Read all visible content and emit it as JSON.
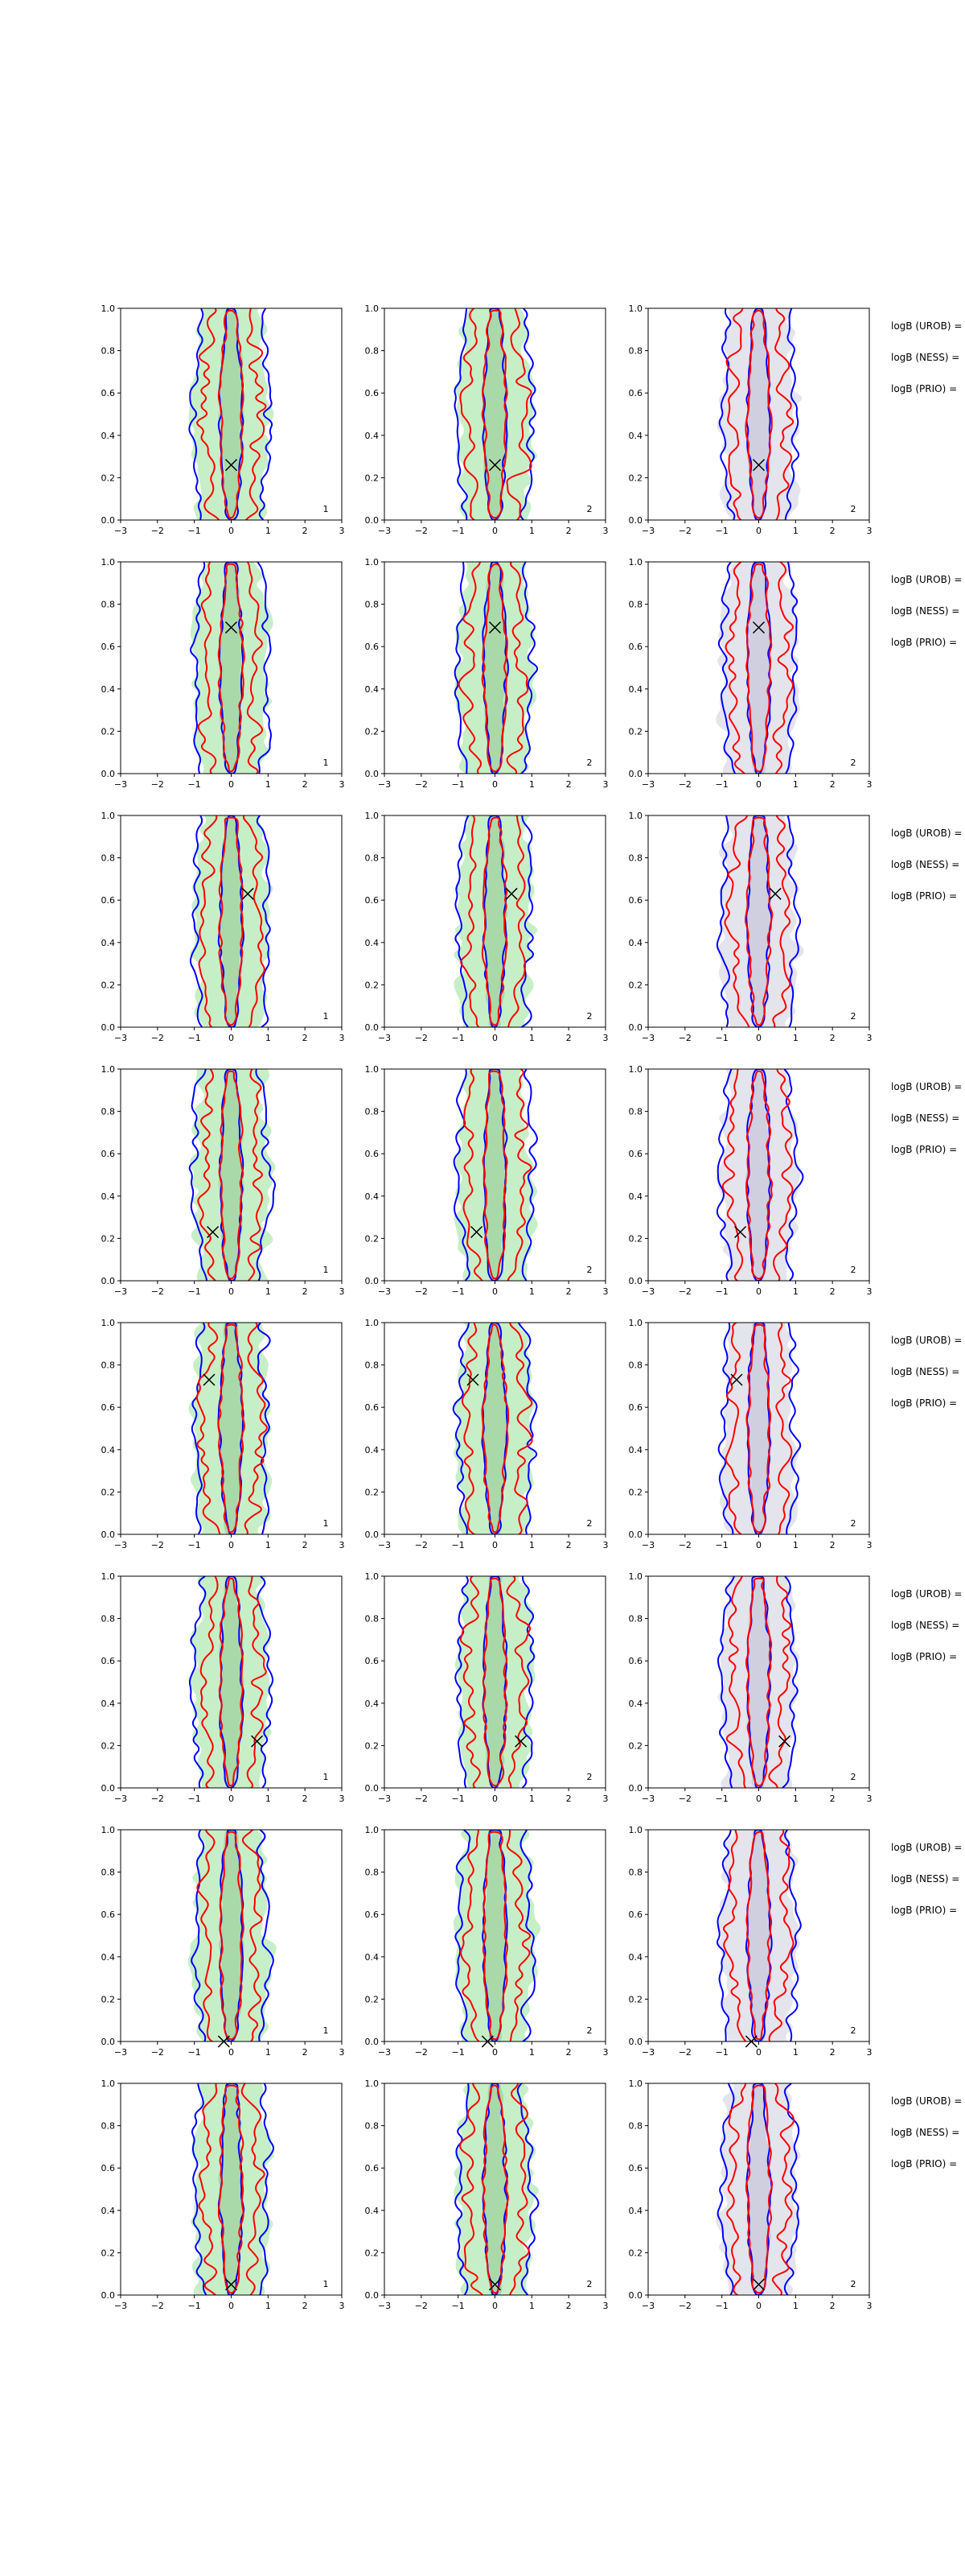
{
  "figure": {
    "chart_data": {
      "type": "contour",
      "description_rows": 8,
      "x_ticks": [
        "−3",
        "−2",
        "−1",
        "0",
        "1",
        "2",
        "3"
      ],
      "y_ticks": [
        "0.0",
        "0.2",
        "0.4",
        "0.6",
        "0.8",
        "1.0"
      ],
      "xlim": [
        -3,
        3
      ],
      "ylim": [
        0,
        1
      ],
      "series_colors": {
        "fill_outer": "#c7efc7",
        "fill_inner": "#a9d9a9",
        "grey_outer": "#e4e4ec",
        "grey_inner": "#cfcfe0",
        "blue": "#0000ff",
        "red": "#ff0000"
      },
      "col_labels": [
        "1",
        "2",
        "2"
      ],
      "side_labels": [
        "logB (UROB) =",
        "logB (NESS) =",
        "logB (PRIO) ="
      ],
      "rows": [
        {
          "marker": [
            0.0,
            0.26
          ]
        },
        {
          "marker": [
            0.0,
            0.69
          ]
        },
        {
          "marker": [
            0.45,
            0.63
          ]
        },
        {
          "marker": [
            -0.5,
            0.23
          ]
        },
        {
          "marker": [
            -0.6,
            0.73
          ]
        },
        {
          "marker": [
            0.7,
            0.22
          ]
        },
        {
          "marker": [
            -0.2,
            0.0
          ]
        },
        {
          "marker": [
            0.0,
            0.05
          ]
        }
      ]
    }
  }
}
